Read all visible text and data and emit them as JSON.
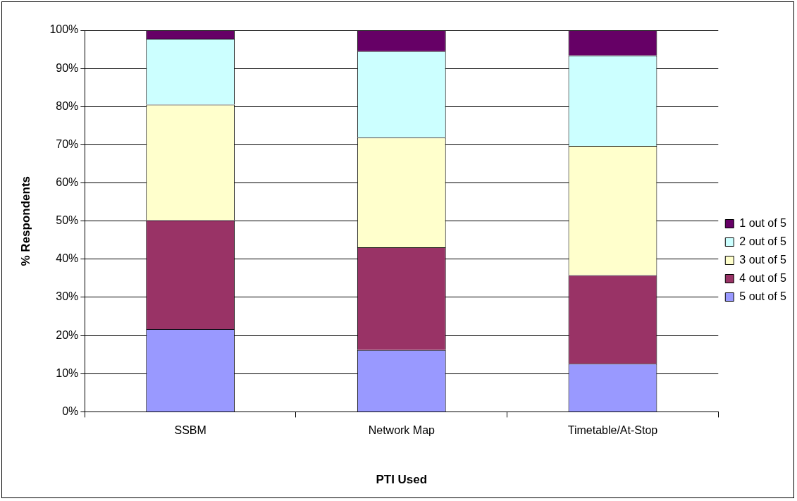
{
  "chart_data": {
    "type": "bar",
    "stacked": true,
    "xlabel": "PTI Used",
    "ylabel": "% Respondents",
    "categories": [
      "SSBM",
      "Network Map",
      "Timetable/At-Stop"
    ],
    "series": [
      {
        "name": "5 out of 5",
        "color": "#9999ff",
        "values": [
          21.7,
          16.2,
          12.6
        ]
      },
      {
        "name": "4 out of 5",
        "color": "#993366",
        "values": [
          28.5,
          26.9,
          23.2
        ]
      },
      {
        "name": "3 out of 5",
        "color": "#ffffcc",
        "values": [
          30.3,
          28.8,
          33.9
        ]
      },
      {
        "name": "2 out of 5",
        "color": "#ccffff",
        "values": [
          17.3,
          22.6,
          23.7
        ]
      },
      {
        "name": "1 out of 5",
        "color": "#660066",
        "values": [
          2.2,
          5.5,
          6.6
        ]
      }
    ],
    "ylim": [
      0,
      100
    ],
    "yticks": [
      {
        "value": 0,
        "label": "0%"
      },
      {
        "value": 10,
        "label": "10%"
      },
      {
        "value": 20,
        "label": "20%"
      },
      {
        "value": 30,
        "label": "30%"
      },
      {
        "value": 40,
        "label": "40%"
      },
      {
        "value": 50,
        "label": "50%"
      },
      {
        "value": 60,
        "label": "60%"
      },
      {
        "value": 70,
        "label": "70%"
      },
      {
        "value": 80,
        "label": "80%"
      },
      {
        "value": 90,
        "label": "90%"
      },
      {
        "value": 100,
        "label": "100%"
      }
    ],
    "grid": "y",
    "legend": "right"
  }
}
